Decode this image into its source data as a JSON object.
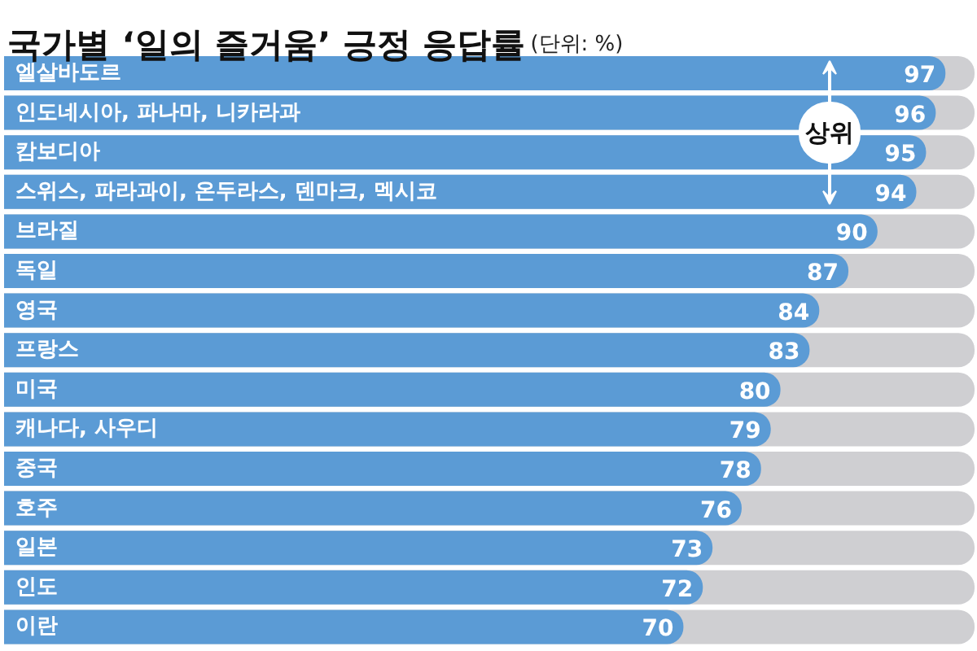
{
  "chart_data": {
    "type": "bar",
    "orientation": "horizontal",
    "title": "국가별 ‘일의 즐거움’ 긍정 응답률",
    "subtitle": "(단위: %)",
    "categories": [
      "엘살바도르",
      "인도네시아, 파나마, 니카라과",
      "캄보디아",
      "스위스, 파라과이, 온두라스, 덴마크, 멕시코",
      "브라질",
      "독일",
      "영국",
      "프랑스",
      "미국",
      "캐나다, 사우디",
      "중국",
      "호주",
      "일본",
      "인도",
      "이란"
    ],
    "values": [
      97,
      96,
      95,
      94,
      90,
      87,
      84,
      83,
      80,
      79,
      78,
      76,
      73,
      72,
      70
    ],
    "color": "#5b9bd5",
    "xlim": [
      0,
      100
    ],
    "data_labels": true,
    "tick_labels": "y",
    "annotations": [
      "상위"
    ]
  }
}
